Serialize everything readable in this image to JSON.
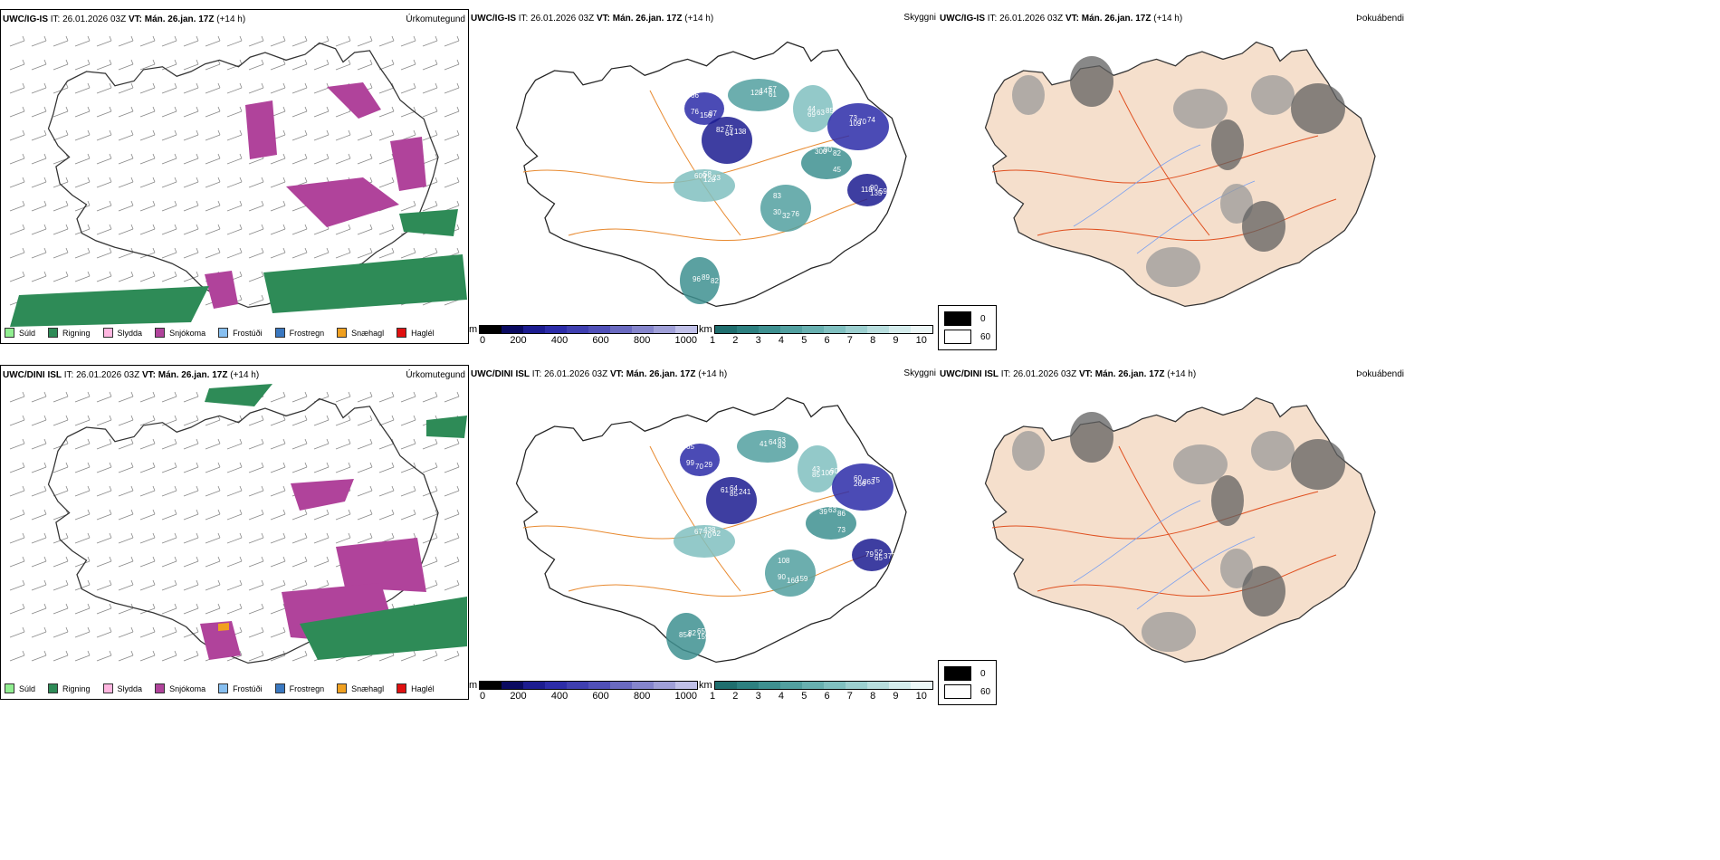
{
  "rows": [
    {
      "model": "UWC/IG-IS",
      "it_label": "IT:",
      "it_value": "26.01.2026 03Z",
      "vt_label": "VT:",
      "vt_value": "Mán. 26.jan. 17Z",
      "lead": "(+14 h)"
    },
    {
      "model": "UWC/DINI ISL",
      "it_label": "IT:",
      "it_value": "26.01.2026 03Z",
      "vt_label": "VT:",
      "vt_value": "Mán. 26.jan. 17Z",
      "lead": "(+14 h)"
    }
  ],
  "panels": {
    "precip_type": "Úrkomutegund",
    "cloud": "Skyggni",
    "fog": "Þokuábendi"
  },
  "precip_legend": [
    {
      "label": "Súld",
      "color": "#90ee90"
    },
    {
      "label": "Rigning",
      "color": "#2e8b57"
    },
    {
      "label": "Slydda",
      "color": "#ffb6e0"
    },
    {
      "label": "Snjókoma",
      "color": "#b0439b"
    },
    {
      "label": "Frostúði",
      "color": "#87bff0"
    },
    {
      "label": "Frostregn",
      "color": "#3a78c0"
    },
    {
      "label": "Snæhagl",
      "color": "#f0a020"
    },
    {
      "label": "Haglél",
      "color": "#e01010"
    }
  ],
  "cloud_base_bar": {
    "unit": "m",
    "ticks": [
      "0",
      "200",
      "400",
      "600",
      "800",
      "1000"
    ],
    "colors": [
      "#000000",
      "#0a0a60",
      "#1c1c90",
      "#2c2ca8",
      "#3f3fb0",
      "#5050b8",
      "#6a6ac0",
      "#8585cc",
      "#a0a0d8",
      "#c0c0e8"
    ]
  },
  "visibility_bar": {
    "unit": "km",
    "ticks": [
      "1",
      "2",
      "3",
      "4",
      "5",
      "6",
      "7",
      "8",
      "9",
      "10"
    ],
    "colors": [
      "#1f6e6e",
      "#2d8080",
      "#3e9090",
      "#52a0a0",
      "#68b0b0",
      "#80c0c0",
      "#9ccfcf",
      "#b8dede",
      "#d4ecec",
      "#ecf7f7"
    ]
  },
  "fog_legend": [
    {
      "label": "0",
      "color": "#000000"
    },
    {
      "label": "60",
      "color": "#ffffff"
    }
  ],
  "cloud_labels_top": [
    "66",
    "64",
    "61",
    "69",
    "82",
    "109",
    "135",
    "83",
    "120",
    "82",
    "156",
    "138",
    "128",
    "63",
    "300",
    "70",
    "59",
    "32",
    "23",
    "96",
    "87",
    "82",
    "147",
    "85",
    "80",
    "74",
    "118",
    "76",
    "609",
    "89",
    "76",
    "75",
    "57",
    "44",
    "45",
    "73",
    "90",
    "30",
    "58"
  ],
  "cloud_labels_bottom": [
    "65",
    "85",
    "83",
    "85",
    "86",
    "266",
    "65",
    "108",
    "70",
    "159",
    "70",
    "241",
    "41",
    "100",
    "39",
    "863",
    "377",
    "160",
    "62",
    "854",
    "29",
    "61",
    "64",
    "60",
    "63",
    "75",
    "79",
    "159",
    "67",
    "82",
    "99",
    "64",
    "63",
    "43",
    "73",
    "60",
    "52",
    "90",
    "438",
    "65"
  ]
}
